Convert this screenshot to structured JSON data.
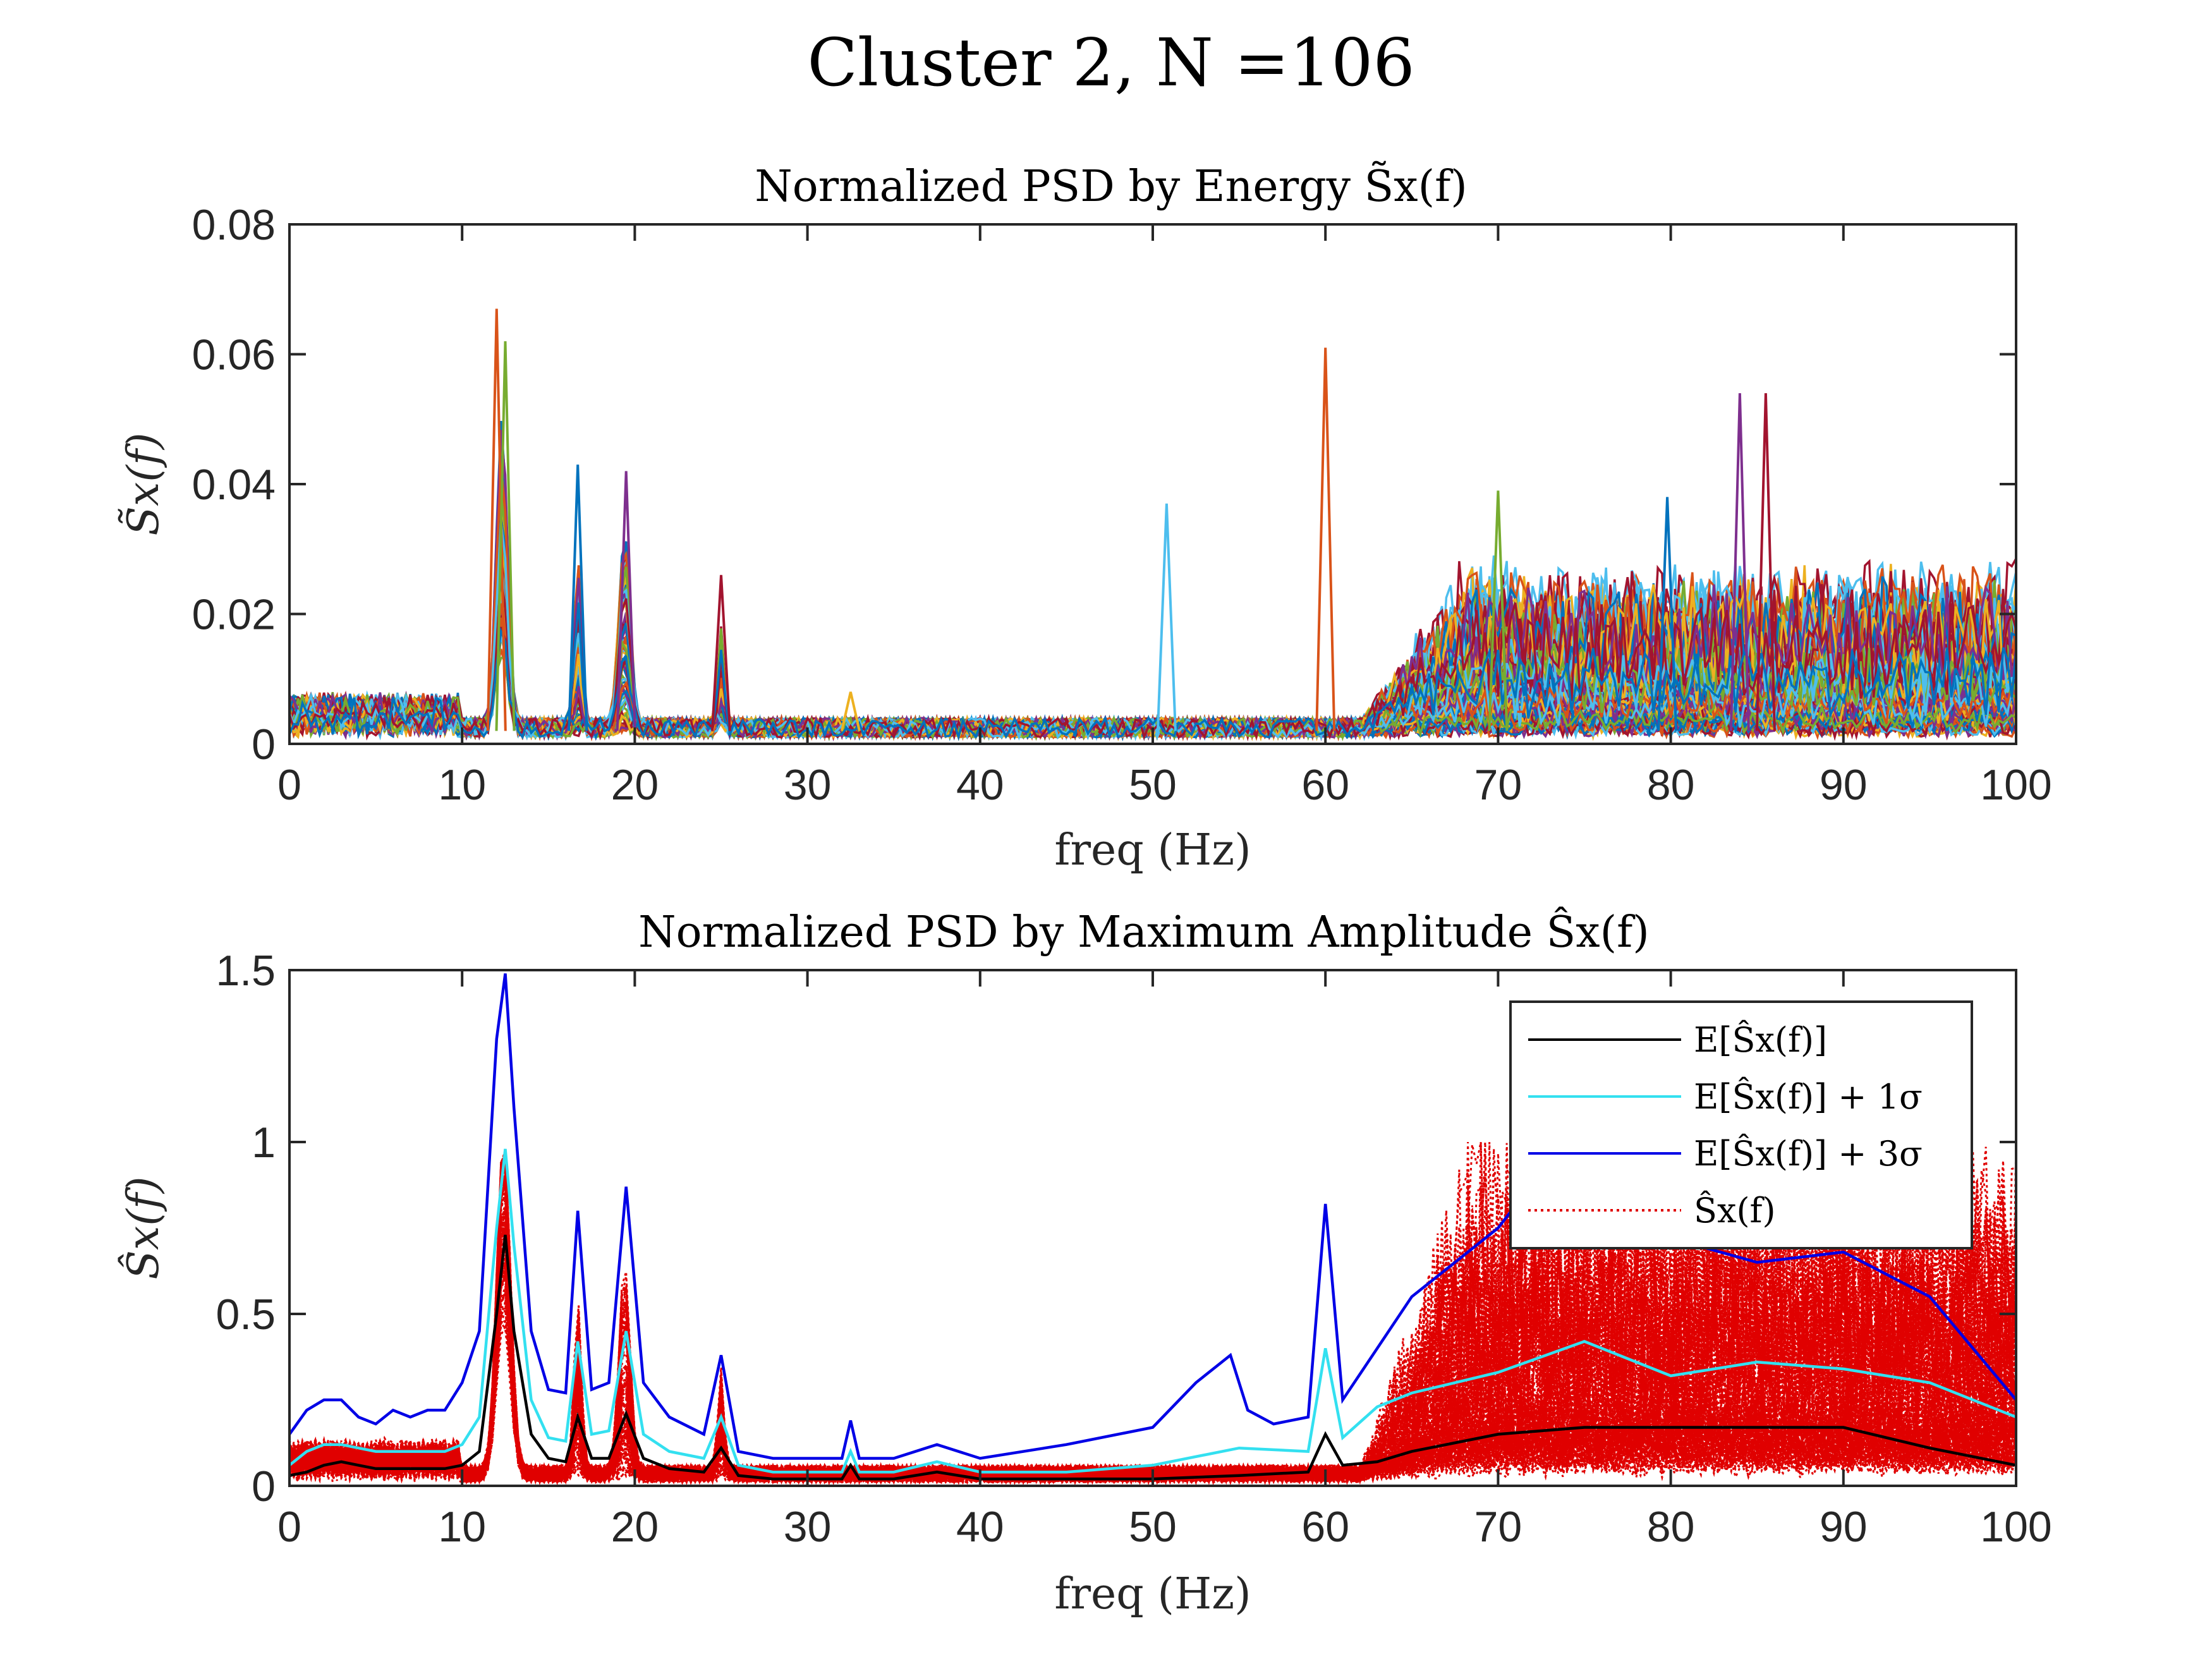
{
  "figure": {
    "title": "Cluster 2, N =106"
  },
  "chart_data": [
    {
      "type": "line",
      "title": "Normalized PSD by Energy S̃x(f)",
      "xlabel": "freq (Hz)",
      "ylabel": "S̃x(f)",
      "xlim": [
        0,
        100
      ],
      "ylim": [
        0,
        0.08
      ],
      "xticks": [
        0,
        10,
        20,
        30,
        40,
        50,
        60,
        70,
        80,
        90,
        100
      ],
      "xtick_labels": [
        "0",
        "10",
        "20",
        "30",
        "40",
        "50",
        "60",
        "70",
        "80",
        "90",
        "100"
      ],
      "yticks": [
        0,
        0.02,
        0.04,
        0.06,
        0.08
      ],
      "ytick_labels": [
        "0",
        "0.02",
        "0.04",
        "0.06",
        "0.08"
      ],
      "grid": false,
      "n_curves": 106,
      "colors": [
        "#0072BD",
        "#D95319",
        "#EDB120",
        "#7E2F8E",
        "#77AC30",
        "#4DBEEE",
        "#A2142F"
      ],
      "peaks": [
        {
          "x": 12.0,
          "y": 0.067
        },
        {
          "x": 12.5,
          "y": 0.062
        },
        {
          "x": 16.7,
          "y": 0.043
        },
        {
          "x": 19.5,
          "y": 0.042
        },
        {
          "x": 25.0,
          "y": 0.026
        },
        {
          "x": 32.5,
          "y": 0.008
        },
        {
          "x": 50.8,
          "y": 0.037
        },
        {
          "x": 60.0,
          "y": 0.061
        },
        {
          "x": 70.0,
          "y": 0.039
        },
        {
          "x": 79.8,
          "y": 0.038
        },
        {
          "x": 84.0,
          "y": 0.054
        },
        {
          "x": 85.5,
          "y": 0.054
        }
      ]
    },
    {
      "type": "line",
      "title": "Normalized PSD by Maximum Amplitude Ŝx(f)",
      "xlabel": "freq (Hz)",
      "ylabel": "Ŝx(f)",
      "xlim": [
        0,
        100
      ],
      "ylim": [
        0,
        1.5
      ],
      "xticks": [
        0,
        10,
        20,
        30,
        40,
        50,
        60,
        70,
        80,
        90,
        100
      ],
      "xtick_labels": [
        "0",
        "10",
        "20",
        "30",
        "40",
        "50",
        "60",
        "70",
        "80",
        "90",
        "100"
      ],
      "yticks": [
        0,
        0.5,
        1,
        1.5
      ],
      "ytick_labels": [
        "0",
        "0.5",
        "1",
        "1.5"
      ],
      "grid": false,
      "legend_position": "top-right",
      "series": [
        {
          "name": "E[Ŝx(f)]",
          "color": "#000000",
          "x": [
            0,
            1,
            2,
            3,
            4,
            5,
            6,
            7,
            8,
            9,
            10,
            11,
            12,
            12.5,
            13,
            14,
            15,
            16,
            16.7,
            17.5,
            18.5,
            19.5,
            20.5,
            22,
            24,
            25,
            26,
            28,
            30,
            32,
            32.5,
            33,
            35,
            37.5,
            40,
            45,
            50,
            55,
            59,
            60,
            61,
            63,
            65,
            70,
            75,
            80,
            85,
            90,
            95,
            100
          ],
          "y": [
            0.03,
            0.04,
            0.06,
            0.07,
            0.06,
            0.05,
            0.05,
            0.05,
            0.05,
            0.05,
            0.06,
            0.1,
            0.5,
            0.73,
            0.45,
            0.15,
            0.08,
            0.07,
            0.2,
            0.08,
            0.08,
            0.21,
            0.08,
            0.05,
            0.04,
            0.11,
            0.03,
            0.02,
            0.02,
            0.02,
            0.06,
            0.02,
            0.02,
            0.04,
            0.02,
            0.02,
            0.02,
            0.03,
            0.04,
            0.15,
            0.06,
            0.07,
            0.1,
            0.15,
            0.17,
            0.17,
            0.17,
            0.17,
            0.11,
            0.06
          ]
        },
        {
          "name": "E[Ŝx(f)] + 1σ",
          "color": "#33E0F0",
          "x": [
            0,
            1,
            2,
            3,
            4,
            5,
            6,
            7,
            8,
            9,
            10,
            11,
            12,
            12.5,
            13,
            14,
            15,
            16,
            16.7,
            17.5,
            18.5,
            19.5,
            20.5,
            22,
            24,
            25,
            26,
            28,
            30,
            32,
            32.5,
            33,
            35,
            37.5,
            40,
            45,
            50,
            55,
            59,
            60,
            61,
            63,
            65,
            70,
            75,
            80,
            85,
            90,
            95,
            100
          ],
          "y": [
            0.06,
            0.1,
            0.12,
            0.12,
            0.11,
            0.1,
            0.1,
            0.1,
            0.1,
            0.1,
            0.12,
            0.2,
            0.75,
            0.98,
            0.7,
            0.25,
            0.14,
            0.13,
            0.42,
            0.15,
            0.16,
            0.45,
            0.15,
            0.1,
            0.08,
            0.2,
            0.06,
            0.04,
            0.04,
            0.04,
            0.1,
            0.04,
            0.04,
            0.07,
            0.04,
            0.04,
            0.06,
            0.11,
            0.1,
            0.4,
            0.14,
            0.23,
            0.27,
            0.33,
            0.42,
            0.32,
            0.36,
            0.34,
            0.3,
            0.2
          ]
        },
        {
          "name": "E[Ŝx(f)] + 3σ",
          "color": "#0000E6",
          "x": [
            0,
            1,
            2,
            3,
            4,
            5,
            6,
            7,
            8,
            9,
            10,
            11,
            12,
            12.5,
            13,
            14,
            15,
            16,
            16.7,
            17.5,
            18.5,
            19.5,
            20.5,
            22,
            24,
            25,
            26,
            28,
            30,
            32,
            32.5,
            33,
            35,
            37.5,
            40,
            45,
            50,
            52.5,
            54.5,
            55.5,
            57,
            59,
            60,
            61,
            63,
            65,
            70,
            72,
            75,
            80,
            85,
            90,
            95,
            100
          ],
          "y": [
            0.15,
            0.22,
            0.25,
            0.25,
            0.2,
            0.18,
            0.22,
            0.2,
            0.22,
            0.22,
            0.3,
            0.45,
            1.3,
            1.49,
            1.1,
            0.45,
            0.28,
            0.27,
            0.8,
            0.28,
            0.3,
            0.87,
            0.3,
            0.2,
            0.15,
            0.38,
            0.1,
            0.08,
            0.08,
            0.08,
            0.19,
            0.08,
            0.08,
            0.12,
            0.08,
            0.12,
            0.17,
            0.3,
            0.38,
            0.22,
            0.18,
            0.2,
            0.82,
            0.25,
            0.4,
            0.55,
            0.75,
            0.88,
            0.9,
            0.72,
            0.65,
            0.68,
            0.55,
            0.25
          ]
        },
        {
          "name": "Ŝx(f)",
          "color": "#E00000",
          "style": "dotted",
          "n_curves": 106
        }
      ]
    }
  ]
}
